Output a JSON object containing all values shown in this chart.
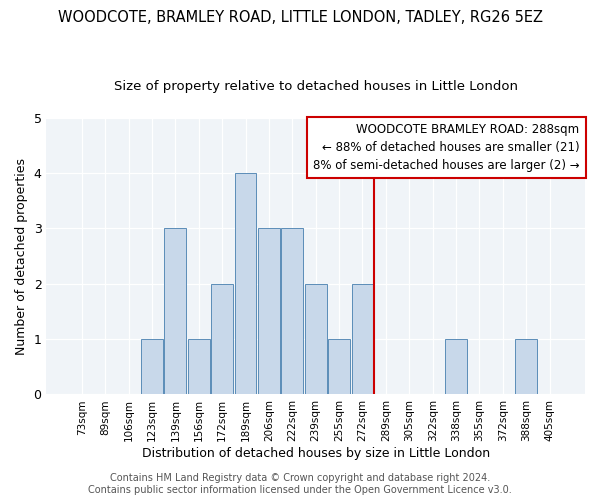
{
  "title": "WOODCOTE, BRAMLEY ROAD, LITTLE LONDON, TADLEY, RG26 5EZ",
  "subtitle": "Size of property relative to detached houses in Little London",
  "xlabel": "Distribution of detached houses by size in Little London",
  "ylabel": "Number of detached properties",
  "categories": [
    "73sqm",
    "89sqm",
    "106sqm",
    "123sqm",
    "139sqm",
    "156sqm",
    "172sqm",
    "189sqm",
    "206sqm",
    "222sqm",
    "239sqm",
    "255sqm",
    "272sqm",
    "289sqm",
    "305sqm",
    "322sqm",
    "338sqm",
    "355sqm",
    "372sqm",
    "388sqm",
    "405sqm"
  ],
  "values": [
    0,
    0,
    0,
    1,
    3,
    1,
    2,
    4,
    3,
    3,
    2,
    1,
    2,
    0,
    0,
    0,
    1,
    0,
    0,
    1,
    0
  ],
  "bar_color": "#c8d8ea",
  "bar_edge_color": "#5b8db8",
  "vline_index": 13,
  "vline_color": "#cc0000",
  "annotation_title": "WOODCOTE BRAMLEY ROAD: 288sqm",
  "annotation_line1": "← 88% of detached houses are smaller (21)",
  "annotation_line2": "8% of semi-detached houses are larger (2) →",
  "annotation_box_color": "#cc0000",
  "ylim": [
    0,
    5
  ],
  "yticks": [
    0,
    1,
    2,
    3,
    4,
    5
  ],
  "footer": "Contains HM Land Registry data © Crown copyright and database right 2024.\nContains public sector information licensed under the Open Government Licence v3.0.",
  "background_color": "#ffffff",
  "plot_background_color": "#f0f4f8",
  "title_fontsize": 10.5,
  "subtitle_fontsize": 9.5,
  "xlabel_fontsize": 9,
  "ylabel_fontsize": 9,
  "footer_fontsize": 7,
  "annotation_fontsize": 8.5
}
